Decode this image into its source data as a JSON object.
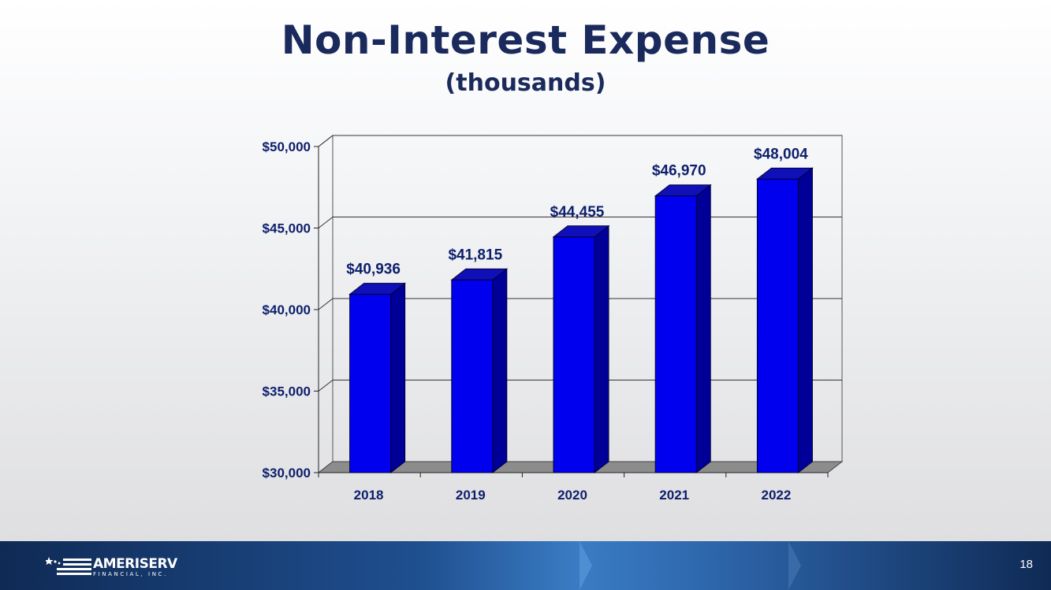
{
  "slide": {
    "title": "Non-Interest Expense",
    "subtitle": "(thousands)",
    "page_number": "18"
  },
  "logo": {
    "name": "AMERISERV",
    "sub": "FINANCIAL, INC."
  },
  "chart_data": {
    "type": "bar",
    "categories": [
      "2018",
      "2019",
      "2020",
      "2021",
      "2022"
    ],
    "values": [
      40936,
      41815,
      44455,
      46970,
      48004
    ],
    "data_labels": [
      "$40,936",
      "$41,815",
      "$44,455",
      "$46,970",
      "$48,004"
    ],
    "ylim": [
      30000,
      50000
    ],
    "y_ticks": [
      30000,
      35000,
      40000,
      45000,
      50000
    ],
    "y_tick_labels": [
      "$30,000",
      "$35,000",
      "$40,000",
      "$45,000",
      "$50,000"
    ],
    "grid": true,
    "legend": "none",
    "bar_color": "#0000ee",
    "bar_side_color": "#000099",
    "bar_top_color": "#1010b8",
    "label_color": "#0d1f6b",
    "style": "3d"
  }
}
